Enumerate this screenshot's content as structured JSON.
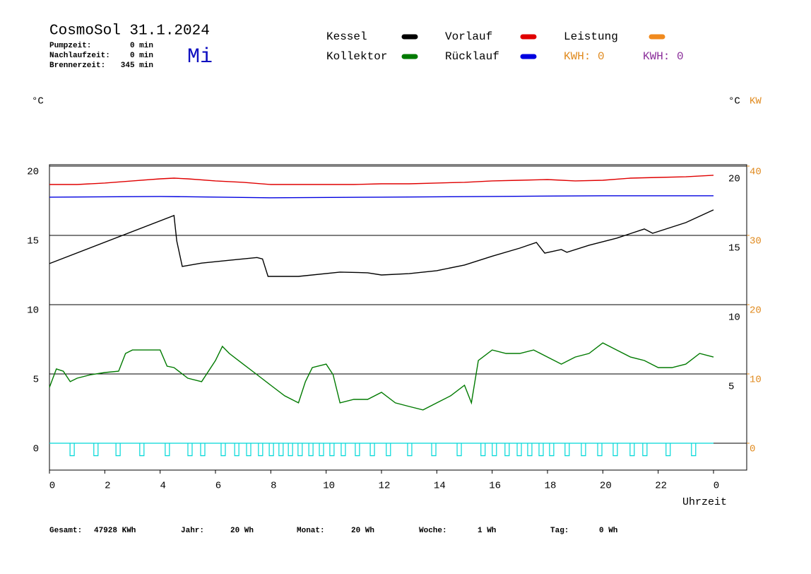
{
  "chart_data": {
    "type": "line",
    "title": "CosmoSol 31.1.2024",
    "weekday": "Mi",
    "summary": [
      {
        "label": "Pumpzeit:",
        "value": "0 min"
      },
      {
        "label": "Nachlaufzeit:",
        "value": "0 min"
      },
      {
        "label": "Brennerzeit:",
        "value": "345 min"
      }
    ],
    "y_unit": "°C",
    "y_unit_right": "°C",
    "y2_unit": "KW",
    "x_label": "Uhrzeit",
    "xlim": [
      0,
      25.2
    ],
    "xticks": [
      0,
      2,
      4,
      6,
      8,
      10,
      12,
      14,
      16,
      18,
      20,
      22,
      {
        "value": 24,
        "label": "0"
      }
    ],
    "ylim": [
      -1.94,
      20.1
    ],
    "yticks": [
      0,
      5,
      10,
      15,
      20
    ],
    "right_ticks": [
      5,
      10,
      15,
      20
    ],
    "y2lim": [
      -3.88,
      40.2
    ],
    "y2ticks": [
      0,
      10,
      20,
      30,
      40
    ],
    "y2_color": "#e08a1e",
    "grid": true,
    "series": [
      {
        "name": "Kessel",
        "color": "#000000",
        "x": [
          0,
          4.5,
          4.6,
          4.8,
          5.5,
          6.5,
          7.5,
          7.7,
          7.9,
          9,
          10.5,
          11.5,
          12,
          13,
          14,
          15,
          16,
          17,
          17.6,
          17.9,
          18.5,
          18.7,
          19.5,
          20.5,
          21.5,
          21.8,
          23,
          24
        ],
        "values": [
          12.96,
          16.43,
          14.6,
          12.76,
          13.0,
          13.2,
          13.4,
          13.3,
          12.04,
          12.04,
          12.35,
          12.3,
          12.14,
          12.24,
          12.45,
          12.86,
          13.5,
          14.08,
          14.49,
          13.72,
          13.98,
          13.78,
          14.29,
          14.8,
          15.46,
          15.15,
          15.92,
          16.84
        ]
      },
      {
        "name": "Vorlauf",
        "color": "#e00000",
        "x": [
          0,
          1,
          2,
          3,
          4,
          4.5,
          5,
          6,
          7,
          8,
          9,
          10,
          11,
          12,
          13,
          14,
          15,
          16,
          17,
          18,
          19,
          20,
          21,
          22,
          23,
          24
        ],
        "values": [
          18.67,
          18.67,
          18.78,
          18.93,
          19.08,
          19.13,
          19.08,
          18.93,
          18.83,
          18.67,
          18.67,
          18.67,
          18.67,
          18.72,
          18.72,
          18.78,
          18.83,
          18.93,
          18.98,
          19.03,
          18.93,
          18.98,
          19.13,
          19.18,
          19.23,
          19.34
        ]
      },
      {
        "name": "Leistung",
        "color": "#f08a1e"
      },
      {
        "name": "Kollektor",
        "color": "#007a00",
        "x": [
          0,
          0.25,
          0.5,
          0.75,
          1,
          1.5,
          2,
          2.5,
          2.75,
          3,
          3.5,
          4,
          4.25,
          4.5,
          5,
          5.5,
          6,
          6.25,
          6.5,
          7,
          7.5,
          8,
          8.5,
          9,
          9.25,
          9.5,
          10,
          10.25,
          10.5,
          11,
          11.5,
          12,
          12.5,
          13,
          13.5,
          14,
          14.5,
          15,
          15.25,
          15.5,
          16,
          16.5,
          17,
          17.5,
          18,
          18.5,
          19,
          19.5,
          20,
          20.5,
          21,
          21.5,
          22,
          22.5,
          23,
          23.5,
          24
        ],
        "values": [
          4.03,
          5.36,
          5.2,
          4.44,
          4.69,
          4.95,
          5.1,
          5.2,
          6.48,
          6.73,
          6.73,
          6.73,
          5.56,
          5.46,
          4.69,
          4.44,
          5.97,
          6.99,
          6.48,
          5.71,
          4.95,
          4.18,
          3.42,
          2.91,
          4.44,
          5.46,
          5.71,
          4.95,
          2.91,
          3.16,
          3.16,
          3.67,
          2.91,
          2.65,
          2.4,
          2.91,
          3.42,
          4.18,
          2.91,
          5.97,
          6.73,
          6.48,
          6.48,
          6.73,
          6.22,
          5.71,
          6.22,
          6.48,
          7.24,
          6.73,
          6.22,
          5.97,
          5.46,
          5.46,
          5.71,
          6.48,
          6.22
        ]
      },
      {
        "name": "Rücklauf",
        "color": "#0000e0",
        "x": [
          0,
          4,
          8,
          12,
          16,
          20,
          24
        ],
        "values": [
          17.76,
          17.81,
          17.71,
          17.76,
          17.81,
          17.86,
          17.86
        ]
      }
    ],
    "kwh": [
      {
        "label": "KWH: 0",
        "color": "#e08a1e"
      },
      {
        "label": "KWH: 0",
        "color": "#8a2e9a"
      }
    ],
    "pulses": {
      "color": "#00d8d8",
      "value": -0.9,
      "x": [
        0.82,
        1.68,
        2.48,
        3.34,
        4.26,
        5.08,
        5.54,
        6.28,
        6.77,
        7.2,
        7.63,
        8.02,
        8.37,
        8.71,
        9.06,
        9.45,
        9.83,
        10.21,
        10.62,
        11.13,
        11.67,
        12.25,
        13.02,
        13.89,
        14.81,
        15.67,
        16.08,
        16.54,
        16.98,
        17.36,
        17.77,
        18.15,
        18.71,
        19.3,
        19.89,
        20.45,
        21.06,
        21.52,
        22.36,
        23.28
      ]
    },
    "totals": [
      {
        "label": "Gesamt:",
        "value": "47928 KWh"
      },
      {
        "label": "Jahr:",
        "value": "20 Wh"
      },
      {
        "label": "Monat:",
        "value": "20 Wh"
      },
      {
        "label": "Woche:",
        "value": "1 Wh"
      },
      {
        "label": "Tag:",
        "value": "0 Wh"
      }
    ]
  }
}
